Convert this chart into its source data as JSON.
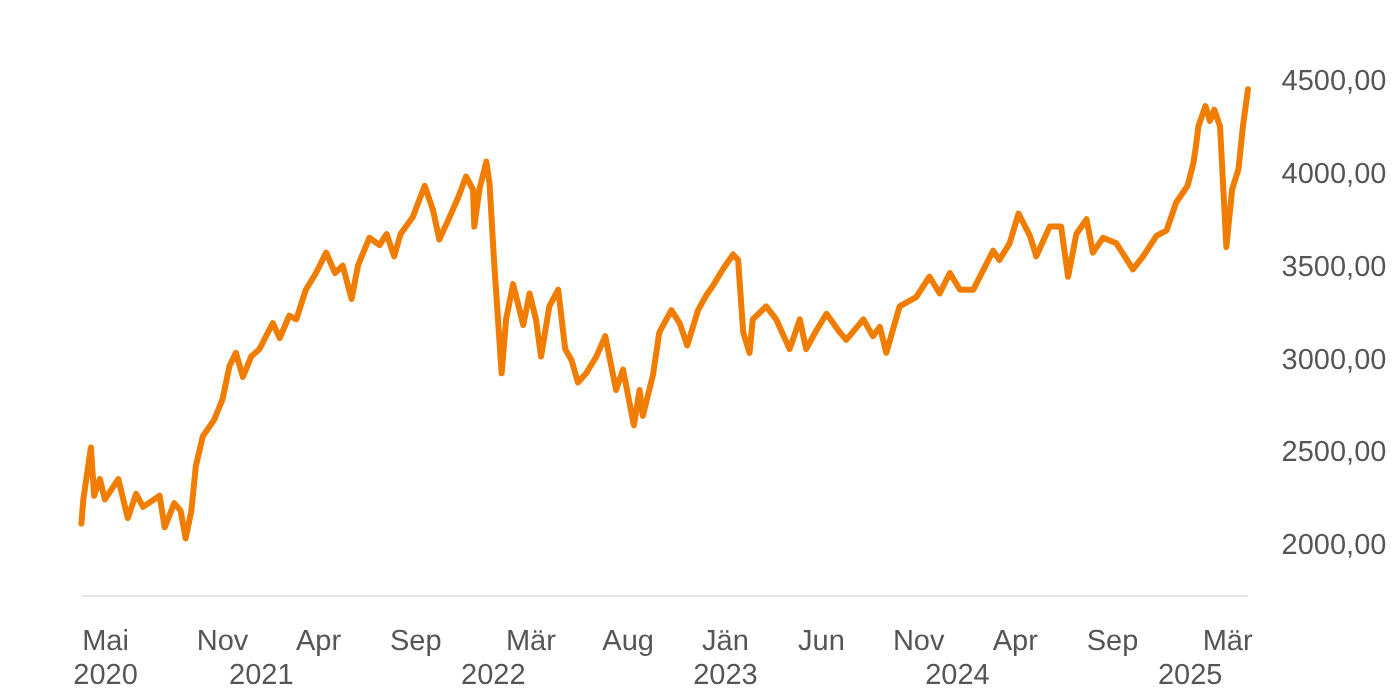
{
  "chart_data": {
    "type": "line",
    "grid": false,
    "marker": "none",
    "line_style": "solid",
    "xlim": [
      "2020-03-24",
      "2025-04-02"
    ],
    "x2lim": [
      "2020-03-24",
      "2025-04-02"
    ],
    "ylim": [
      2000,
      4500
    ],
    "xticks": [
      {
        "value": "2020-05-01",
        "label": "Mai"
      },
      {
        "value": "2020-11-01",
        "label": "Nov"
      },
      {
        "value": "2021-04-01",
        "label": "Apr"
      },
      {
        "value": "2021-09-01",
        "label": "Sep"
      },
      {
        "value": "2022-03-01",
        "label": "Mär"
      },
      {
        "value": "2022-08-01",
        "label": "Aug"
      },
      {
        "value": "2023-01-01",
        "label": "Jän"
      },
      {
        "value": "2023-06-01",
        "label": "Jun"
      },
      {
        "value": "2023-11-01",
        "label": "Nov"
      },
      {
        "value": "2024-04-01",
        "label": "Apr"
      },
      {
        "value": "2024-09-01",
        "label": "Sep"
      },
      {
        "value": "2025-03-01",
        "label": "Mär"
      }
    ],
    "x2ticks": [
      {
        "value": "2020-05-01",
        "label": "2020"
      },
      {
        "value": "2021-01-01",
        "label": "2021"
      },
      {
        "value": "2022-01-01",
        "label": "2022"
      },
      {
        "value": "2023-01-01",
        "label": "2023"
      },
      {
        "value": "2024-01-01",
        "label": "2024"
      },
      {
        "value": "2025-01-01",
        "label": "2025"
      }
    ],
    "yticks": [
      {
        "value": 2000,
        "label": "2000,00"
      },
      {
        "value": 2500,
        "label": "2500,00"
      },
      {
        "value": 3000,
        "label": "3000,00"
      },
      {
        "value": 3500,
        "label": "3500,00"
      },
      {
        "value": 4000,
        "label": "4000,00"
      },
      {
        "value": 4500,
        "label": "4500,00"
      }
    ],
    "series": [
      {
        "color": "#f07d00",
        "x": [
          "2020-03-24",
          "2020-03-27",
          "2020-04-08",
          "2020-04-13",
          "2020-04-22",
          "2020-04-30",
          "2020-05-21",
          "2020-06-05",
          "2020-06-18",
          "2020-06-29",
          "2020-07-25",
          "2020-08-02",
          "2020-08-17",
          "2020-08-27",
          "2020-09-04",
          "2020-09-13",
          "2020-09-20",
          "2020-10-01",
          "2020-10-19",
          "2020-11-01",
          "2020-11-12",
          "2020-11-22",
          "2020-12-03",
          "2020-12-16",
          "2020-12-29",
          "2021-01-19",
          "2021-01-30",
          "2021-02-14",
          "2021-02-25",
          "2021-03-12",
          "2021-03-28",
          "2021-04-13",
          "2021-04-27",
          "2021-05-09",
          "2021-05-23",
          "2021-06-02",
          "2021-06-20",
          "2021-07-06",
          "2021-07-17",
          "2021-07-29",
          "2021-08-08",
          "2021-08-27",
          "2021-09-15",
          "2021-09-28",
          "2021-10-08",
          "2021-10-24",
          "2021-11-07",
          "2021-11-19",
          "2021-11-30",
          "2021-12-02",
          "2021-12-10",
          "2021-12-21",
          "2021-12-26",
          "2022-01-02",
          "2022-01-14",
          "2022-01-21",
          "2022-02-01",
          "2022-02-17",
          "2022-02-27",
          "2022-03-09",
          "2022-03-17",
          "2022-03-30",
          "2022-04-13",
          "2022-04-24",
          "2022-05-04",
          "2022-05-14",
          "2022-05-27",
          "2022-06-12",
          "2022-06-26",
          "2022-07-13",
          "2022-07-24",
          "2022-08-10",
          "2022-08-19",
          "2022-08-24",
          "2022-09-09",
          "2022-09-19",
          "2022-10-08",
          "2022-10-21",
          "2022-11-02",
          "2022-11-19",
          "2022-12-02",
          "2022-12-14",
          "2022-12-28",
          "2023-01-13",
          "2023-01-21",
          "2023-01-29",
          "2023-02-08",
          "2023-02-13",
          "2023-03-06",
          "2023-03-22",
          "2023-04-12",
          "2023-04-28",
          "2023-05-08",
          "2023-05-24",
          "2023-06-09",
          "2023-06-30",
          "2023-07-10",
          "2023-08-06",
          "2023-08-21",
          "2023-09-01",
          "2023-09-11",
          "2023-10-02",
          "2023-10-28",
          "2023-11-18",
          "2023-12-04",
          "2023-12-20",
          "2024-01-05",
          "2024-01-26",
          "2024-02-26",
          "2024-03-07",
          "2024-03-23",
          "2024-04-06",
          "2024-04-24",
          "2024-05-04",
          "2024-05-25",
          "2024-06-12",
          "2024-06-23",
          "2024-07-06",
          "2024-07-22",
          "2024-08-01",
          "2024-08-17",
          "2024-09-07",
          "2024-10-03",
          "2024-10-19",
          "2024-11-09",
          "2024-11-25",
          "2024-12-10",
          "2024-12-28",
          "2025-01-06",
          "2025-01-10",
          "2025-01-14",
          "2025-01-25",
          "2025-02-01",
          "2025-02-08",
          "2025-02-17",
          "2025-02-27",
          "2025-03-08",
          "2025-03-18",
          "2025-03-25",
          "2025-04-02"
        ],
        "values": [
          2110,
          2240,
          2520,
          2260,
          2350,
          2240,
          2350,
          2140,
          2270,
          2200,
          2260,
          2090,
          2220,
          2180,
          2030,
          2180,
          2420,
          2580,
          2670,
          2780,
          2960,
          3030,
          2900,
          3010,
          3050,
          3190,
          3110,
          3230,
          3210,
          3370,
          3460,
          3570,
          3460,
          3500,
          3320,
          3500,
          3650,
          3610,
          3670,
          3550,
          3670,
          3760,
          3930,
          3800,
          3640,
          3760,
          3870,
          3980,
          3910,
          3710,
          3910,
          4060,
          3940,
          3530,
          2920,
          3210,
          3400,
          3180,
          3350,
          3210,
          3010,
          3280,
          3370,
          3050,
          2990,
          2870,
          2920,
          3010,
          3120,
          2830,
          2940,
          2640,
          2830,
          2690,
          2910,
          3140,
          3260,
          3190,
          3070,
          3260,
          3340,
          3400,
          3480,
          3560,
          3530,
          3140,
          3030,
          3210,
          3280,
          3210,
          3050,
          3210,
          3050,
          3150,
          3240,
          3140,
          3100,
          3210,
          3120,
          3170,
          3030,
          3280,
          3330,
          3440,
          3350,
          3460,
          3370,
          3370,
          3580,
          3530,
          3620,
          3780,
          3660,
          3550,
          3710,
          3710,
          3440,
          3670,
          3750,
          3570,
          3650,
          3620,
          3480,
          3550,
          3660,
          3690,
          3840,
          3930,
          4050,
          4140,
          4250,
          4360,
          4280,
          4340,
          4250,
          3600,
          3910,
          4020,
          4250,
          4450
        ]
      }
    ]
  }
}
